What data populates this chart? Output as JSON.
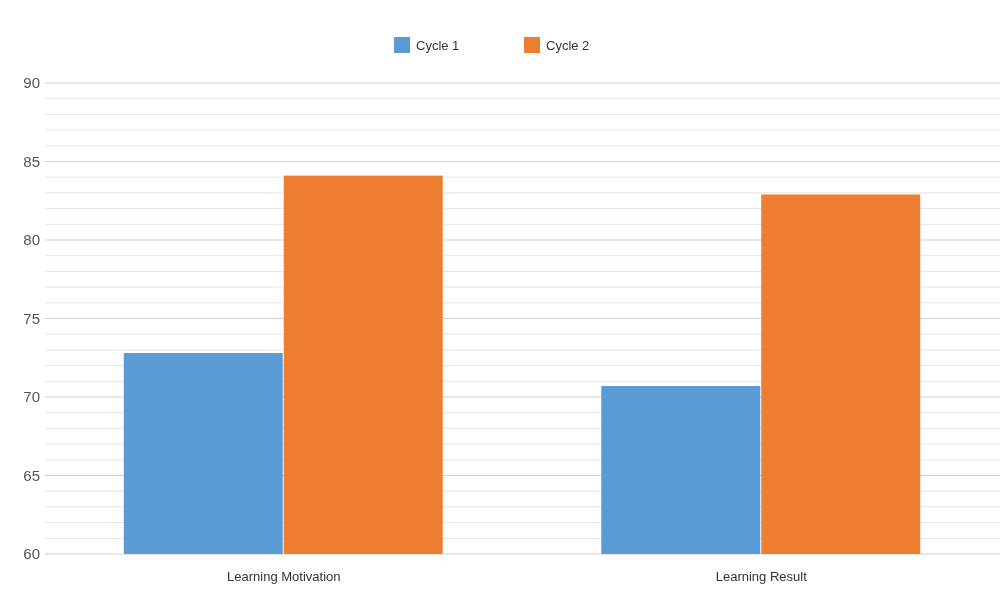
{
  "chart_data": {
    "type": "bar",
    "categories": [
      "Learning Motivation",
      "Learning Result"
    ],
    "series": [
      {
        "name": "Cycle 1",
        "color": "#5b9bd5",
        "values": [
          72.8,
          70.7
        ]
      },
      {
        "name": "Cycle 2",
        "color": "#ed7d31",
        "values": [
          84.1,
          82.9
        ]
      }
    ],
    "ylim": [
      60,
      90
    ],
    "yticks": [
      60,
      {
        "value": 61,
        "label": null
      },
      {
        "value": 62,
        "label": null
      },
      {
        "value": 63,
        "label": null
      },
      {
        "value": 64,
        "label": null
      },
      65,
      {
        "value": 66,
        "label": null
      },
      {
        "value": 67,
        "label": null
      },
      {
        "value": 68,
        "label": null
      },
      {
        "value": 69,
        "label": null
      },
      70,
      {
        "value": 71,
        "label": null
      },
      {
        "value": 72,
        "label": null
      },
      {
        "value": 73,
        "label": null
      },
      {
        "value": 74,
        "label": null
      },
      75,
      {
        "value": 76,
        "label": null
      },
      {
        "value": 77,
        "label": null
      },
      {
        "value": 78,
        "label": null
      },
      {
        "value": 79,
        "label": null
      },
      80,
      {
        "value": 81,
        "label": null
      },
      {
        "value": 82,
        "label": null
      },
      {
        "value": 83,
        "label": null
      },
      {
        "value": 84,
        "label": null
      },
      85,
      {
        "value": 86,
        "label": null
      },
      {
        "value": 87,
        "label": null
      },
      {
        "value": 88,
        "label": null
      },
      {
        "value": 89,
        "label": null
      },
      90
    ],
    "grid": true,
    "legend": "top"
  }
}
